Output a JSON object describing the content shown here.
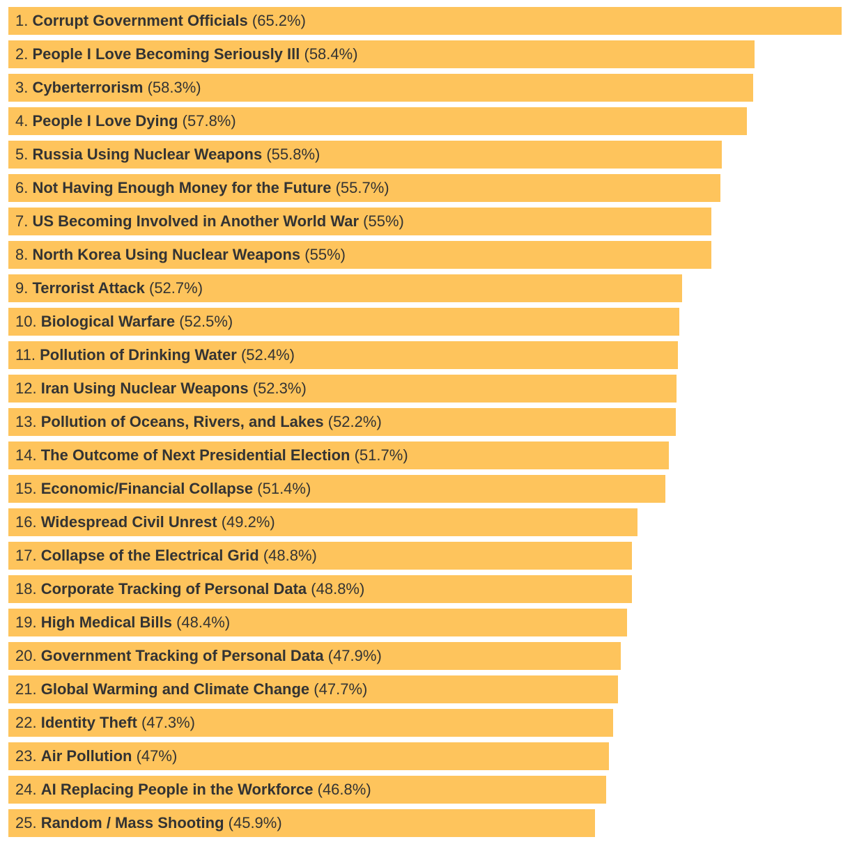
{
  "chart_data": {
    "type": "bar",
    "orientation": "horizontal",
    "bar_color": "#fec45c",
    "text_color": "#333333",
    "xlim": [
      0,
      65.2
    ],
    "categories": [
      "Corrupt Government Officials",
      "People I Love Becoming Seriously Ill",
      "Cyberterrorism",
      "People I Love Dying",
      "Russia Using Nuclear Weapons",
      "Not Having Enough Money for the Future",
      "US Becoming Involved in Another World War",
      "North Korea Using Nuclear Weapons",
      "Terrorist Attack",
      "Biological Warfare",
      "Pollution of Drinking Water",
      "Iran Using Nuclear Weapons",
      "Pollution of Oceans, Rivers, and Lakes",
      "The Outcome of Next Presidential Election",
      "Economic/Financial Collapse",
      "Widespread Civil Unrest",
      "Collapse of the Electrical Grid",
      "Corporate Tracking of Personal Data",
      "High Medical Bills",
      "Government Tracking of Personal Data",
      "Global Warming and Climate Change",
      "Identity Theft",
      "Air Pollution",
      "AI Replacing People in the Workforce",
      "Random / Mass Shooting"
    ],
    "values": [
      65.2,
      58.4,
      58.3,
      57.8,
      55.8,
      55.7,
      55,
      55,
      52.7,
      52.5,
      52.4,
      52.3,
      52.2,
      51.7,
      51.4,
      49.2,
      48.8,
      48.8,
      48.4,
      47.9,
      47.7,
      47.3,
      47,
      46.8,
      45.9
    ],
    "ranks": [
      "1.",
      "2.",
      "3.",
      "4.",
      "5.",
      "6.",
      "7.",
      "8.",
      "9.",
      "10.",
      "11.",
      "12.",
      "13.",
      "14.",
      "15.",
      "16.",
      "17.",
      "18.",
      "19.",
      "20.",
      "21.",
      "22.",
      "23.",
      "24.",
      "25."
    ],
    "value_labels": [
      "(65.2%)",
      "(58.4%)",
      "(58.3%)",
      "(57.8%)",
      "(55.8%)",
      "(55.7%)",
      "(55%)",
      "(55%)",
      "(52.7%)",
      "(52.5%)",
      "(52.4%)",
      "(52.3%)",
      "(52.2%)",
      "(51.7%)",
      "(51.4%)",
      "(49.2%)",
      "(48.8%)",
      "(48.8%)",
      "(48.4%)",
      "(47.9%)",
      "(47.7%)",
      "(47.3%)",
      "(47%)",
      "(46.8%)",
      "(45.9%)"
    ]
  }
}
